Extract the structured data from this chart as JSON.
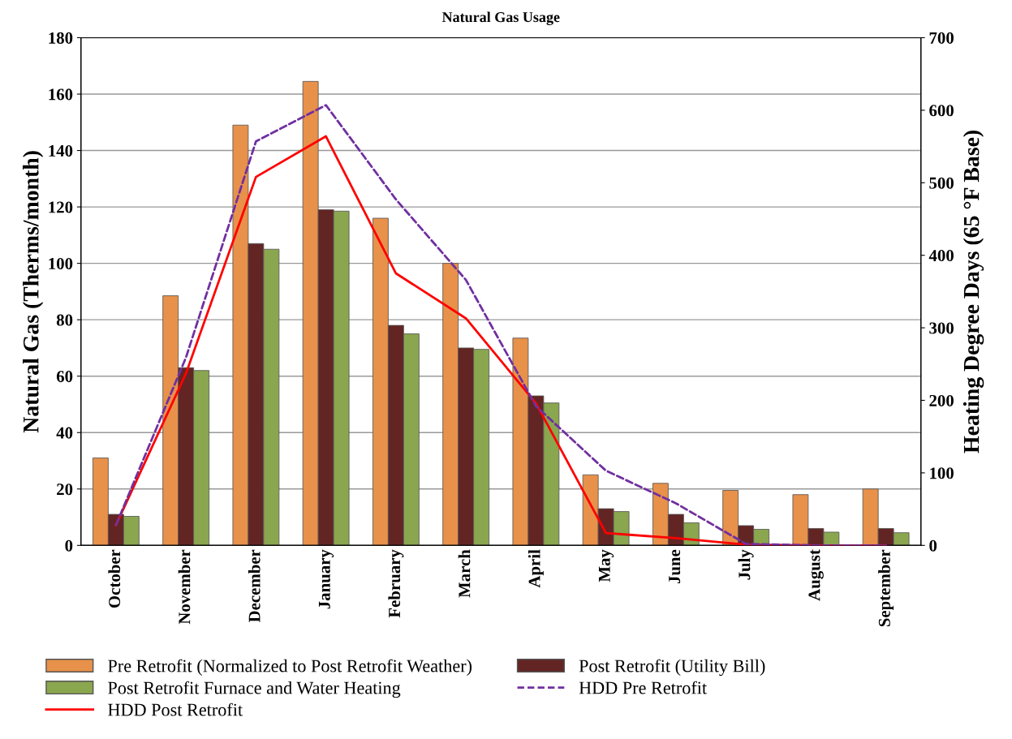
{
  "chart_data": {
    "type": "bar",
    "title": "Natural Gas Usage",
    "ylabel": "Natural Gas (Therms/month)",
    "y2label": "Heating Degree Days (65 °F Base)",
    "categories": [
      "October",
      "November",
      "December",
      "January",
      "February",
      "March",
      "April",
      "May",
      "June",
      "July",
      "August",
      "September"
    ],
    "series": [
      {
        "name": "Pre Retrofit (Normalized to Post Retrofit Weather)",
        "color": "#e8914a",
        "values": [
          31,
          88.5,
          149,
          164.5,
          116,
          100,
          73.5,
          25,
          22,
          19.5,
          18,
          20
        ]
      },
      {
        "name": "Post Retrofit (Utility Bill)",
        "color": "#632523",
        "values": [
          11,
          63,
          107,
          119,
          78,
          70,
          53,
          13,
          11,
          7,
          6,
          6
        ]
      },
      {
        "name": "Post Retrofit Furnace and Water Heating",
        "color": "#8aa64f",
        "values": [
          10.3,
          62,
          105,
          118.5,
          75,
          69.5,
          50.5,
          12,
          8,
          5.7,
          4.7,
          4.5
        ]
      },
      {
        "name": "HDD Pre Retrofit",
        "type": "line",
        "axis": "y2",
        "color": "#7030a0",
        "line_style": "dashed",
        "values": [
          28,
          259,
          557,
          607,
          477,
          366,
          192,
          103,
          58,
          2,
          0,
          0
        ]
      },
      {
        "name": "HDD Post Retrofit",
        "type": "line",
        "axis": "y2",
        "color": "#ff0000",
        "line_style": "solid",
        "values": [
          28,
          237,
          508,
          564,
          375,
          313,
          196,
          17,
          10,
          1,
          0,
          0
        ]
      }
    ],
    "ylim": [
      0,
      180
    ],
    "yticks": [
      0,
      20,
      40,
      60,
      80,
      100,
      120,
      140,
      160,
      180
    ],
    "y2lim": [
      0,
      700
    ],
    "y2ticks": [
      0,
      100,
      200,
      300,
      400,
      500,
      600,
      700
    ],
    "grid": "y",
    "legend": "bottom"
  }
}
